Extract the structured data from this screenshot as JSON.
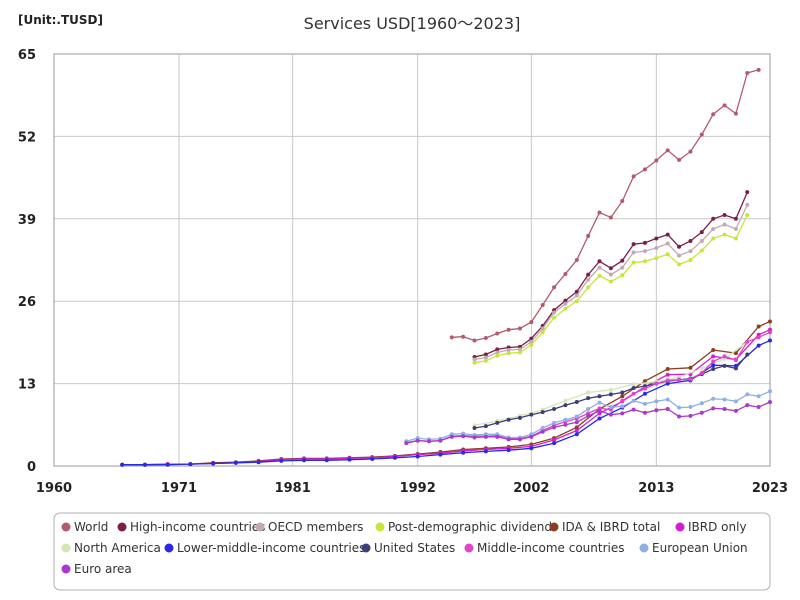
{
  "chart_data": {
    "type": "line",
    "title": "Services USD[1960～2023]",
    "unit_label": "[Unit:.TUSD]",
    "xlabel": "",
    "ylabel": "",
    "xlim": [
      1960,
      2023
    ],
    "ylim": [
      0,
      65
    ],
    "x_ticks": [
      1960,
      1971,
      1981,
      1992,
      2002,
      2013,
      2023
    ],
    "y_ticks": [
      0,
      13,
      26,
      39,
      52,
      65
    ],
    "grid": true,
    "legend_position": "bottom",
    "series": [
      {
        "name": "World",
        "color": "#b35a6e",
        "x": [
          1995,
          1996,
          1997,
          1998,
          1999,
          2000,
          2001,
          2002,
          2003,
          2004,
          2005,
          2006,
          2007,
          2008,
          2009,
          2010,
          2011,
          2012,
          2013,
          2014,
          2015,
          2016,
          2017,
          2018,
          2019,
          2020,
          2021,
          2022
        ],
        "y": [
          20.3,
          20.4,
          19.8,
          20.2,
          20.9,
          21.5,
          21.7,
          22.7,
          25.4,
          28.2,
          30.3,
          32.5,
          36.3,
          40,
          39.2,
          41.8,
          45.7,
          46.8,
          48.2,
          49.8,
          48.3,
          49.6,
          52.3,
          55.5,
          56.9,
          55.6,
          62,
          62.5
        ]
      },
      {
        "name": "High-income countries",
        "color": "#7a1f4a",
        "x": [
          1997,
          1998,
          1999,
          2000,
          2001,
          2002,
          2003,
          2004,
          2005,
          2006,
          2007,
          2008,
          2009,
          2010,
          2011,
          2012,
          2013,
          2014,
          2015,
          2016,
          2017,
          2018,
          2019,
          2020,
          2021
        ],
        "y": [
          17.2,
          17.6,
          18.4,
          18.7,
          18.8,
          20.1,
          22.1,
          24.6,
          26.1,
          27.5,
          30.2,
          32.3,
          31.2,
          32.4,
          35,
          35.2,
          35.9,
          36.5,
          34.6,
          35.5,
          36.9,
          39,
          39.6,
          39,
          43.2
        ]
      },
      {
        "name": "OECD members",
        "color": "#c2aab5",
        "x": [
          1997,
          1998,
          1999,
          2000,
          2001,
          2002,
          2003,
          2004,
          2005,
          2006,
          2007,
          2008,
          2009,
          2010,
          2011,
          2012,
          2013,
          2014,
          2015,
          2016,
          2017,
          2018,
          2019,
          2020,
          2021
        ],
        "y": [
          16.8,
          17.1,
          17.9,
          18.3,
          18.4,
          19.6,
          21.7,
          24.2,
          25.6,
          26.9,
          29.4,
          31.3,
          30.2,
          31.3,
          33.7,
          33.9,
          34.4,
          35.1,
          33.2,
          33.9,
          35.5,
          37.4,
          38.1,
          37.4,
          41.2
        ]
      },
      {
        "name": "Post-demographic dividend",
        "color": "#c6e63a",
        "x": [
          1997,
          1998,
          1999,
          2000,
          2001,
          2002,
          2003,
          2004,
          2005,
          2006,
          2007,
          2008,
          2009,
          2010,
          2011,
          2012,
          2013,
          2014,
          2015,
          2016,
          2017,
          2018,
          2019,
          2020,
          2021
        ],
        "y": [
          16.3,
          16.6,
          17.4,
          17.8,
          17.9,
          19.1,
          21.1,
          23.4,
          24.8,
          26,
          28.2,
          30,
          29.1,
          30.1,
          32.1,
          32.3,
          32.8,
          33.4,
          31.8,
          32.5,
          34,
          35.9,
          36.5,
          35.9,
          39.6
        ]
      },
      {
        "name": "IDA & IBRD total",
        "color": "#8a3f1e",
        "x": [
          1966,
          1968,
          1970,
          1972,
          1974,
          1976,
          1978,
          1980,
          1982,
          1984,
          1986,
          1988,
          1990,
          1992,
          1994,
          1996,
          1998,
          2000,
          2002,
          2004,
          2006,
          2008,
          2010,
          2012,
          2014,
          2016,
          2018,
          2020,
          2022,
          2023
        ],
        "y": [
          0.2,
          0.2,
          0.3,
          0.3,
          0.5,
          0.6,
          0.8,
          1.1,
          1.2,
          1.2,
          1.3,
          1.4,
          1.6,
          1.9,
          2.2,
          2.6,
          2.8,
          3,
          3.4,
          4.4,
          6.1,
          9,
          11,
          13.4,
          15.3,
          15.5,
          18.3,
          17.8,
          22,
          22.8
        ]
      },
      {
        "name": "IBRD only",
        "color": "#d21ed2",
        "x": [
          1966,
          1968,
          1970,
          1972,
          1974,
          1976,
          1978,
          1980,
          1982,
          1984,
          1986,
          1988,
          1990,
          1992,
          1994,
          1996,
          1998,
          2000,
          2002,
          2004,
          2006,
          2008,
          2010,
          2012,
          2014,
          2016,
          2018,
          2020,
          2022,
          2023
        ],
        "y": [
          0.2,
          0.2,
          0.3,
          0.3,
          0.4,
          0.5,
          0.7,
          1,
          1.1,
          1.1,
          1.2,
          1.3,
          1.5,
          1.8,
          2,
          2.4,
          2.6,
          2.8,
          3.1,
          4.1,
          5.6,
          8.3,
          10.2,
          12.5,
          14.4,
          14.5,
          17.3,
          16.8,
          20.7,
          21.5
        ]
      },
      {
        "name": "North America",
        "color": "#d4e6b5",
        "x": [
          1997,
          1999,
          2001,
          2003,
          2005,
          2007,
          2009,
          2011,
          2013,
          2015,
          2017,
          2019,
          2021
        ],
        "y": [
          6.4,
          7.1,
          7.9,
          8.9,
          10.3,
          11.6,
          12,
          12.9,
          13.3,
          14,
          15.4,
          16.9,
          19.6
        ]
      },
      {
        "name": "Lower-middle-income countries",
        "color": "#2a2ae6",
        "x": [
          1966,
          1968,
          1970,
          1972,
          1974,
          1976,
          1978,
          1980,
          1982,
          1984,
          1986,
          1988,
          1990,
          1992,
          1994,
          1996,
          1998,
          2000,
          2002,
          2004,
          2006,
          2008,
          2010,
          2012,
          2014,
          2016,
          2018,
          2020,
          2022,
          2023
        ],
        "y": [
          0.2,
          0.2,
          0.2,
          0.3,
          0.4,
          0.5,
          0.6,
          0.8,
          0.9,
          0.9,
          1,
          1.1,
          1.3,
          1.5,
          1.8,
          2.1,
          2.3,
          2.5,
          2.8,
          3.6,
          5,
          7.5,
          9.2,
          11.4,
          13,
          13.5,
          15.9,
          15.8,
          19,
          19.8
        ]
      },
      {
        "name": "United States",
        "color": "#3d3d7a",
        "x": [
          1997,
          1998,
          1999,
          2000,
          2001,
          2002,
          2003,
          2004,
          2005,
          2006,
          2007,
          2008,
          2009,
          2010,
          2011,
          2012,
          2013,
          2014,
          2015,
          2016,
          2017,
          2018,
          2019,
          2020,
          2021
        ],
        "y": [
          6,
          6.3,
          6.8,
          7.3,
          7.6,
          8.1,
          8.5,
          9,
          9.6,
          10.1,
          10.7,
          11,
          11.3,
          11.6,
          12.3,
          12.6,
          13,
          13.4,
          13.6,
          13.8,
          14.5,
          15.3,
          15.8,
          15.4,
          17.6
        ]
      },
      {
        "name": "Middle-income countries",
        "color": "#e044c8",
        "x": [
          1991,
          1992,
          1993,
          1994,
          1995,
          1996,
          1997,
          1998,
          1999,
          2000,
          2001,
          2002,
          2003,
          2004,
          2005,
          2006,
          2007,
          2008,
          2009,
          2010,
          2011,
          2012,
          2013,
          2014,
          2015,
          2016,
          2017,
          2018,
          2019,
          2020,
          2021,
          2022,
          2023
        ],
        "y": [
          3.7,
          4,
          3.9,
          4,
          4.7,
          4.8,
          4.7,
          4.7,
          4.8,
          4.3,
          4.3,
          4.7,
          5.6,
          6.4,
          7,
          7.5,
          8.3,
          9.1,
          8.9,
          10.3,
          11.4,
          12.2,
          13,
          13.5,
          13.6,
          13.7,
          14.7,
          16.5,
          17.3,
          16.7,
          19.6,
          20.3,
          21.1
        ]
      },
      {
        "name": "European Union",
        "color": "#8fb0e0",
        "x": [
          1991,
          1992,
          1993,
          1994,
          1995,
          1996,
          1997,
          1998,
          1999,
          2000,
          2001,
          2002,
          2003,
          2004,
          2005,
          2006,
          2007,
          2008,
          2009,
          2010,
          2011,
          2012,
          2013,
          2014,
          2015,
          2016,
          2017,
          2018,
          2019,
          2020,
          2021,
          2022,
          2023
        ],
        "y": [
          3.9,
          4.4,
          4.2,
          4.3,
          5,
          5.1,
          4.9,
          5,
          5,
          4.5,
          4.5,
          5,
          6,
          6.8,
          7.3,
          7.8,
          9,
          10,
          9.3,
          9.4,
          10.3,
          9.8,
          10.2,
          10.5,
          9.2,
          9.3,
          9.9,
          10.6,
          10.5,
          10.2,
          11.3,
          11,
          11.8
        ]
      },
      {
        "name": "Euro area",
        "color": "#a838d0",
        "x": [
          1991,
          1992,
          1993,
          1994,
          1995,
          1996,
          1997,
          1998,
          1999,
          2000,
          2001,
          2002,
          2003,
          2004,
          2005,
          2006,
          2007,
          2008,
          2009,
          2010,
          2011,
          2012,
          2013,
          2014,
          2015,
          2016,
          2017,
          2018,
          2019,
          2020,
          2021,
          2022,
          2023
        ],
        "y": [
          3.6,
          4,
          3.9,
          4,
          4.6,
          4.7,
          4.5,
          4.6,
          4.6,
          4.2,
          4.2,
          4.6,
          5.4,
          6.1,
          6.5,
          6.9,
          7.9,
          8.7,
          8.1,
          8.3,
          8.9,
          8.4,
          8.8,
          9,
          7.8,
          7.9,
          8.4,
          9.1,
          9,
          8.7,
          9.6,
          9.3,
          10.1
        ]
      }
    ]
  }
}
